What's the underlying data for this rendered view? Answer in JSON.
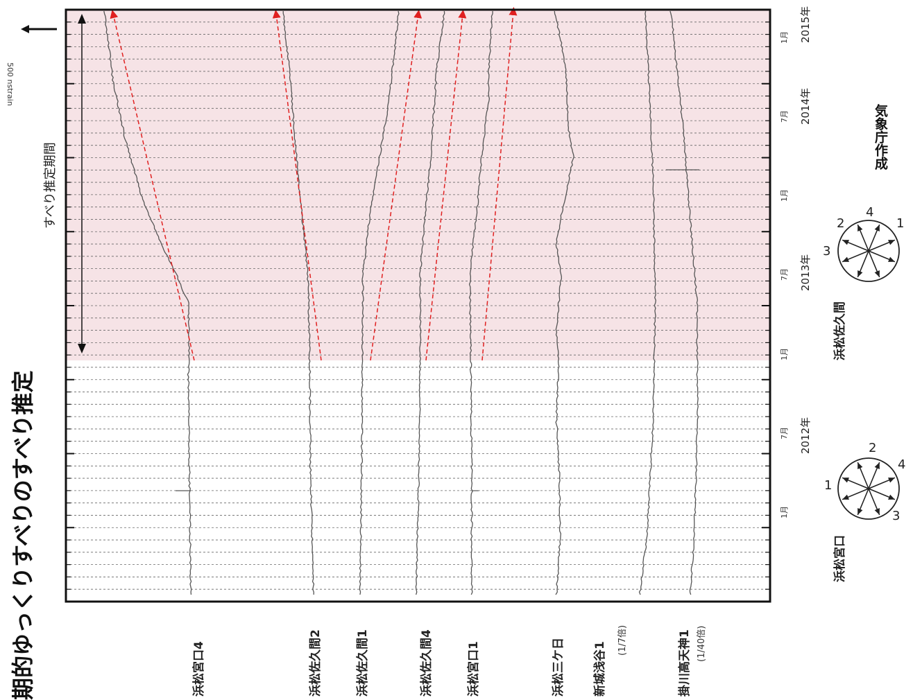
{
  "title": "期的ゆっくりすべりのすべり推定",
  "scale_label": "500 nstrain",
  "estimation_period_label": "すべり推定期間",
  "credit": "気象庁作成",
  "time_axis": {
    "years": [
      "2012年",
      "2013年",
      "2014年",
      "2015年"
    ],
    "month_ticks": [
      "1月",
      "7月",
      "1月",
      "7月",
      "1月",
      "7月",
      "1月"
    ]
  },
  "stations": [
    {
      "name": "浜松宮口4",
      "note": ""
    },
    {
      "name": "浜松佐久間2",
      "note": ""
    },
    {
      "name": "浜松佐久間1",
      "note": ""
    },
    {
      "name": "浜松佐久間4",
      "note": ""
    },
    {
      "name": "浜松宮口1",
      "note": ""
    },
    {
      "name": "浜松三ケ日",
      "note": ""
    },
    {
      "name": "新城浅谷1",
      "note": "(1/7倍)"
    },
    {
      "name": "掛川高天神1",
      "note": "(1/40倍)"
    }
  ],
  "roses": [
    {
      "label": "浜松宮口",
      "numbers": [
        "1",
        "2",
        "3",
        "4"
      ]
    },
    {
      "label": "浜松佐久間",
      "numbers": [
        "1",
        "2",
        "3",
        "4"
      ]
    }
  ],
  "chart_data": {
    "type": "line",
    "title": "期的ゆっくりすべりのすべり推定",
    "xlabel": "",
    "ylabel": "",
    "time_range": [
      "2011-10",
      "2015-02"
    ],
    "estimation_period": [
      "2012-12",
      "2015-01"
    ],
    "series": [
      {
        "name": "浜松宮口4",
        "t": [
          0,
          0.3,
          0.38,
          0.42,
          0.46,
          0.5,
          0.55,
          0.6,
          0.68,
          0.78,
          0.88,
          1.0
        ],
        "v": [
          0,
          4,
          5,
          3,
          4,
          5,
          30,
          60,
          100,
          135,
          160,
          178
        ]
      },
      {
        "name": "浜松佐久間2",
        "t": [
          0,
          0.2,
          0.4,
          0.5,
          0.55,
          0.6,
          0.7,
          0.8,
          0.9,
          1.0
        ],
        "v": [
          0,
          6,
          8,
          10,
          12,
          18,
          30,
          40,
          50,
          63
        ]
      },
      {
        "name": "浜松佐久間1",
        "t": [
          0,
          0.2,
          0.4,
          0.55,
          0.65,
          0.75,
          0.85,
          1.0
        ],
        "v": [
          0,
          -3,
          -5,
          -6,
          -20,
          -40,
          -60,
          -80
        ]
      },
      {
        "name": "浜松佐久間4",
        "t": [
          0,
          0.2,
          0.4,
          0.55,
          0.65,
          0.75,
          0.85,
          0.9,
          1.0
        ],
        "v": [
          0,
          -5,
          -8,
          -8,
          -18,
          -30,
          -38,
          -42,
          -58
        ]
      },
      {
        "name": "浜松宮口1",
        "t": [
          0,
          0.2,
          0.4,
          0.55,
          0.65,
          0.75,
          0.85,
          0.9,
          1.0
        ],
        "v": [
          0,
          0,
          2,
          4,
          -10,
          -20,
          -35,
          -35,
          -42
        ]
      },
      {
        "name": "浜松三ケ日",
        "t": [
          0,
          0.1,
          0.2,
          0.3,
          0.4,
          0.45,
          0.55,
          0.6,
          0.65,
          0.75,
          0.8,
          0.9,
          1.0
        ],
        "v": [
          0,
          -8,
          -6,
          0,
          -5,
          0,
          -10,
          0,
          -10,
          -35,
          -25,
          -20,
          3
        ]
      },
      {
        "name": "新城浅谷1 (1/7倍)",
        "t": [
          0,
          0.1,
          0.3,
          0.5,
          0.7,
          0.9,
          1.0
        ],
        "v": [
          0,
          -15,
          -28,
          -32,
          -28,
          -18,
          -12
        ]
      },
      {
        "name": "掛川高天神1 (1/40倍)",
        "t": [
          0,
          0.1,
          0.3,
          0.5,
          0.6,
          0.8,
          1.0
        ],
        "v": [
          0,
          -8,
          -15,
          -14,
          -4,
          15,
          40
        ]
      }
    ],
    "slip_trend_arrows": [
      {
        "station": "浜松宮口4"
      },
      {
        "station": "浜松佐久間2"
      },
      {
        "station": "浜松佐久間1"
      },
      {
        "station": "浜松佐久間4"
      },
      {
        "station": "浜松宮口1"
      }
    ],
    "colors": {
      "highlight": "#f6e3e6",
      "trend": "#e02020",
      "trace": "#555555",
      "frame": "#111111"
    }
  }
}
